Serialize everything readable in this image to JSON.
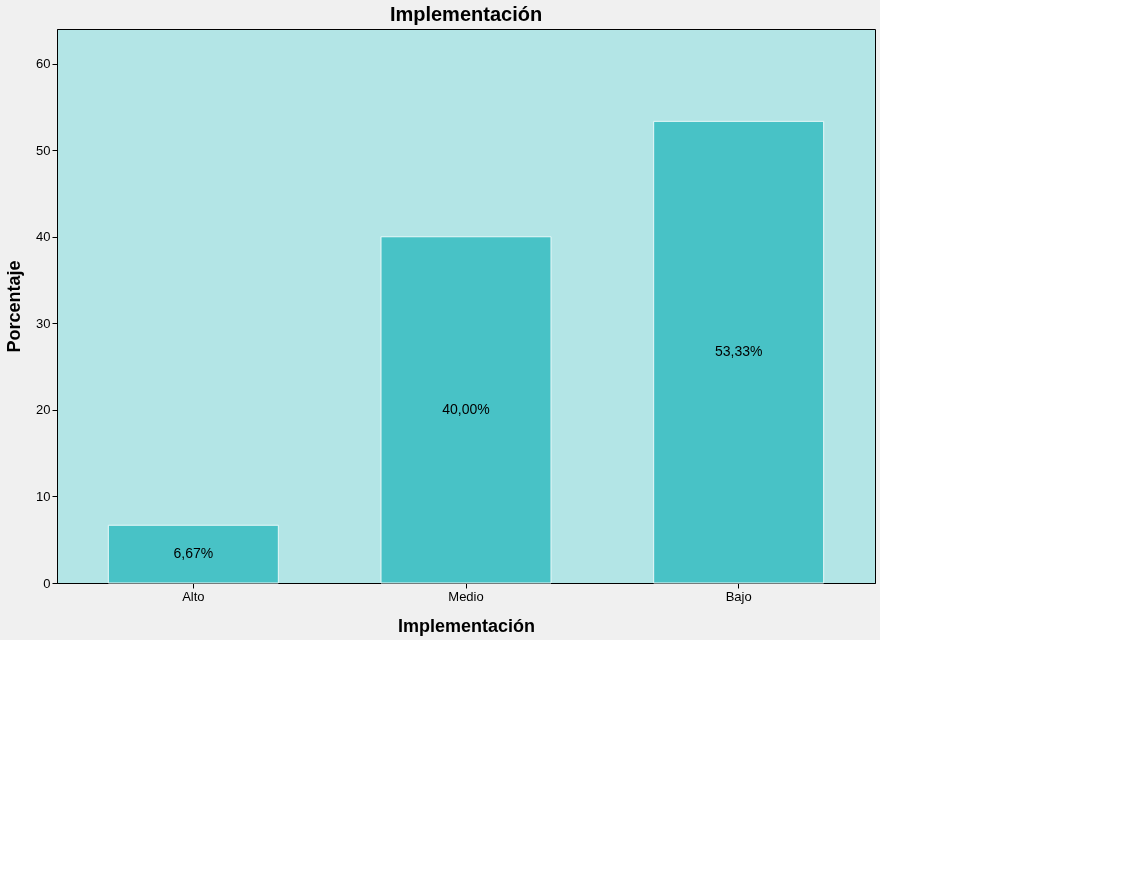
{
  "chart_data": {
    "type": "bar",
    "title": "Implementación",
    "xlabel": "Implementación",
    "ylabel": "Porcentaje",
    "categories": [
      "Alto",
      "Medio",
      "Bajo"
    ],
    "values": [
      6.67,
      40.0,
      53.33
    ],
    "value_labels": [
      "6,67%",
      "40,00%",
      "53,33%"
    ],
    "color": "#48c2c6",
    "ylim": [
      0,
      64
    ],
    "yticks": [
      0,
      10,
      20,
      30,
      40,
      50,
      60
    ],
    "grid": false
  }
}
